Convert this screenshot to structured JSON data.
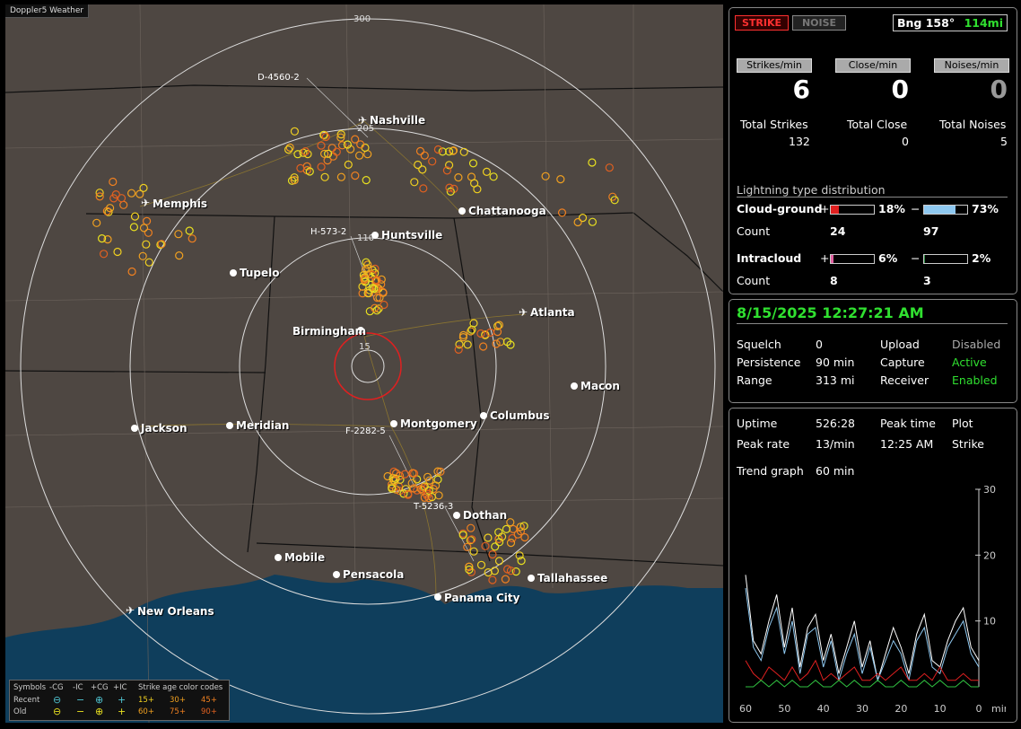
{
  "app": {
    "title": "Doppler5 Weather"
  },
  "map": {
    "cities": [
      {
        "name": "Nashville",
        "airport": true
      },
      {
        "name": "Memphis",
        "airport": true
      },
      {
        "name": "Chattanooga",
        "airport": false
      },
      {
        "name": "Huntsville",
        "airport": false
      },
      {
        "name": "Tupelo",
        "airport": false
      },
      {
        "name": "Atlanta",
        "airport": true
      },
      {
        "name": "Birmingham",
        "airport": false
      },
      {
        "name": "Macon",
        "airport": false
      },
      {
        "name": "Jackson",
        "airport": false
      },
      {
        "name": "Meridian",
        "airport": false
      },
      {
        "name": "Montgomery",
        "airport": false
      },
      {
        "name": "Columbus",
        "airport": false
      },
      {
        "name": "Dothan",
        "airport": false
      },
      {
        "name": "Mobile",
        "airport": false
      },
      {
        "name": "Pensacola",
        "airport": false
      },
      {
        "name": "Tallahassee",
        "airport": false
      },
      {
        "name": "Panama City",
        "airport": false
      },
      {
        "name": "New Orleans",
        "airport": true
      }
    ],
    "ring_labels": [
      "300",
      "205",
      "110",
      "15"
    ],
    "storm_ids": [
      "D-4560-2",
      "H-573-2",
      "F-2282-5",
      "T-5236-3"
    ],
    "legend": {
      "symbols_label": "Symbols",
      "headers": [
        "-CG",
        "-IC",
        "+CG",
        "+IC"
      ],
      "age_title": "Strike age color codes",
      "recent_label": "Recent",
      "old_label": "Old",
      "recent_ages": [
        "15+",
        "30+",
        "45+"
      ],
      "old_ages": [
        "60+",
        "75+",
        "90+"
      ]
    }
  },
  "status": {
    "strike_button": "STRIKE",
    "noise_button": "NOISE",
    "bearing": "Bng 158°",
    "distance": "114mi"
  },
  "rates": {
    "strikes_label": "Strikes/min",
    "close_label": "Close/min",
    "noises_label": "Noises/min",
    "strikes_value": "6",
    "close_value": "0",
    "noises_value": "0",
    "total_strikes_label": "Total Strikes",
    "total_close_label": "Total Close",
    "total_noises_label": "Total Noises",
    "total_strikes": "132",
    "total_close": "0",
    "total_noises": "5"
  },
  "distribution": {
    "title": "Lightning type distribution",
    "cg_label": "Cloud-ground",
    "ic_label": "Intracloud",
    "count_label": "Count",
    "plus": "+",
    "minus": "−",
    "cg_pos_pct": "18%",
    "cg_neg_pct": "73%",
    "cg_pos_count": "24",
    "cg_neg_count": "97",
    "ic_pos_pct": "6%",
    "ic_neg_pct": "2%",
    "ic_pos_count": "8",
    "ic_neg_count": "3",
    "levels": {
      "cg_pos": 0.18,
      "cg_neg": 0.73,
      "ic_pos": 0.06,
      "ic_neg": 0.02
    },
    "colors": {
      "cg_pos": "#e02020",
      "cg_neg": "#8ec8f0",
      "ic_pos": "#e060a0",
      "ic_neg": "#2a8a40"
    }
  },
  "settings": {
    "datetime": "8/15/2025 12:27:21 AM",
    "squelch_label": "Squelch",
    "squelch": "0",
    "persistence_label": "Persistence",
    "persistence": "90 min",
    "range_label": "Range",
    "range": "313 mi",
    "upload_label": "Upload",
    "upload": "Disabled",
    "capture_label": "Capture",
    "capture": "Active",
    "receiver_label": "Receiver",
    "receiver": "Enabled"
  },
  "stats": {
    "uptime_label": "Uptime",
    "uptime": "526:28",
    "peak_time_label": "Peak time",
    "peak_time": "12:25 AM",
    "plot_label": "Plot",
    "plot": "Strike",
    "peak_rate_label": "Peak rate",
    "peak_rate": "13/min",
    "trend_label": "Trend graph",
    "trend_window": "60 min"
  },
  "chart_data": {
    "type": "line",
    "xlabel": "min",
    "x_ticks": [
      "60",
      "50",
      "40",
      "30",
      "20",
      "10",
      "0"
    ],
    "y_ticks": [
      "30",
      "20",
      "10"
    ],
    "xlim": [
      60,
      0
    ],
    "ylim": [
      0,
      30
    ],
    "x": [
      60,
      58,
      56,
      54,
      52,
      50,
      48,
      46,
      44,
      42,
      40,
      38,
      36,
      34,
      32,
      30,
      28,
      26,
      24,
      22,
      20,
      18,
      16,
      14,
      12,
      10,
      8,
      6,
      4,
      2,
      0
    ],
    "series": [
      {
        "color": "#ffffff",
        "values": [
          17,
          7,
          5,
          10,
          14,
          6,
          12,
          3,
          9,
          11,
          4,
          8,
          2,
          6,
          10,
          3,
          7,
          1,
          5,
          9,
          6,
          2,
          8,
          11,
          4,
          3,
          7,
          10,
          12,
          6,
          4
        ]
      },
      {
        "color": "#8ec8f0",
        "values": [
          15,
          6,
          4,
          9,
          12,
          5,
          10,
          2,
          8,
          9,
          3,
          7,
          1,
          5,
          8,
          2,
          6,
          1,
          4,
          7,
          5,
          1,
          7,
          9,
          3,
          2,
          6,
          8,
          10,
          5,
          3
        ]
      },
      {
        "color": "#e02020",
        "values": [
          4,
          2,
          1,
          3,
          2,
          1,
          3,
          1,
          2,
          4,
          1,
          2,
          1,
          2,
          3,
          1,
          1,
          2,
          1,
          2,
          3,
          1,
          1,
          2,
          1,
          3,
          1,
          1,
          2,
          1,
          1
        ]
      },
      {
        "color": "#30c040",
        "values": [
          0,
          0,
          1,
          0,
          1,
          0,
          1,
          0,
          0,
          1,
          0,
          0,
          1,
          0,
          1,
          0,
          0,
          1,
          0,
          0,
          1,
          0,
          0,
          1,
          0,
          1,
          0,
          0,
          1,
          0,
          0
        ]
      }
    ]
  }
}
